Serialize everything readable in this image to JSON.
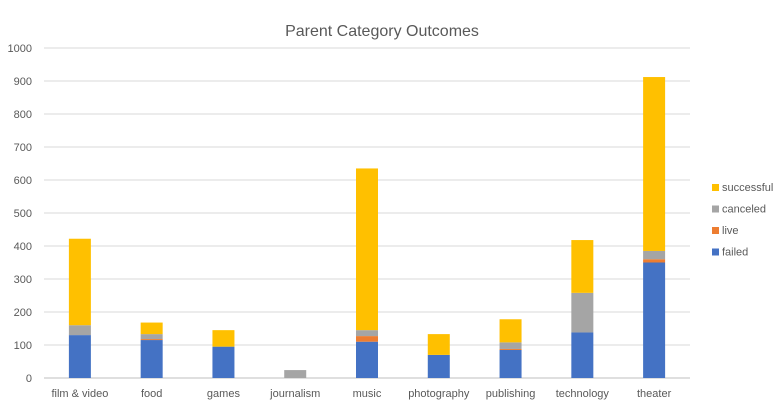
{
  "chart_data": {
    "type": "bar",
    "stacked": true,
    "title": "Parent Category Outcomes",
    "xlabel": "",
    "ylabel": "",
    "ylim": [
      0,
      1000
    ],
    "yticks": [
      0,
      100,
      200,
      300,
      400,
      500,
      600,
      700,
      800,
      900,
      1000
    ],
    "grid": true,
    "legend_position": "right",
    "categories": [
      "film & video",
      "food",
      "games",
      "journalism",
      "music",
      "photography",
      "publishing",
      "technology",
      "theater"
    ],
    "series": [
      {
        "name": "failed",
        "color": "#4472C4",
        "values": [
          130,
          115,
          95,
          0,
          110,
          70,
          85,
          138,
          350
        ]
      },
      {
        "name": "live",
        "color": "#ED7D31",
        "values": [
          0,
          3,
          0,
          0,
          17,
          0,
          3,
          0,
          10
        ]
      },
      {
        "name": "canceled",
        "color": "#A5A5A5",
        "values": [
          30,
          15,
          0,
          24,
          18,
          0,
          20,
          120,
          25
        ]
      },
      {
        "name": "successful",
        "color": "#FFC000",
        "values": [
          262,
          35,
          50,
          0,
          490,
          63,
          70,
          160,
          527
        ]
      }
    ]
  }
}
